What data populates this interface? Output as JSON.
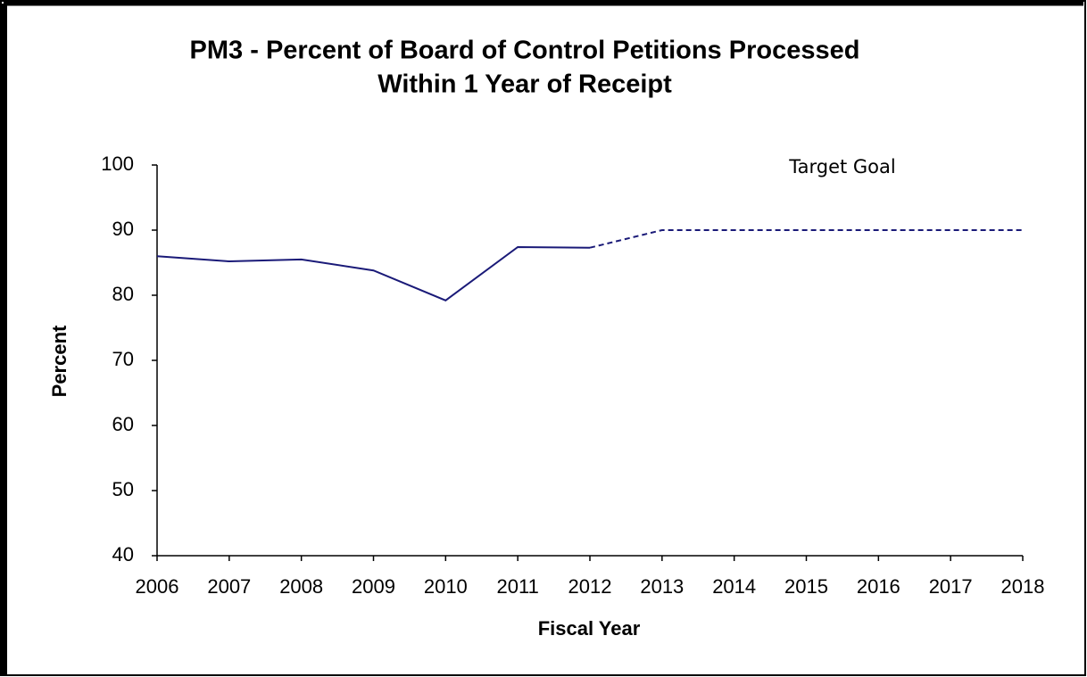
{
  "chart_data": {
    "type": "line",
    "title": [
      "PM3 - Percent of Board of Control Petitions Processed",
      "Within 1 Year of Receipt"
    ],
    "xlabel": "Fiscal Year",
    "ylabel": "Percent",
    "annotation": "Target Goal",
    "categories": [
      "2006",
      "2007",
      "2008",
      "2009",
      "2010",
      "2011",
      "2012",
      "2013",
      "2014",
      "2015",
      "2016",
      "2017",
      "2018"
    ],
    "series": [
      {
        "color": "#1a1a78",
        "dash": false,
        "values": [
          86.0,
          85.2,
          85.5,
          83.8,
          79.2,
          87.4,
          87.3,
          null,
          null,
          null,
          null,
          null,
          null
        ]
      },
      {
        "color": "#1a1a78",
        "dash": true,
        "values": [
          null,
          null,
          null,
          null,
          null,
          null,
          87.3,
          90,
          90,
          90,
          90,
          90,
          90
        ]
      }
    ],
    "ylim": [
      40,
      100
    ],
    "yticks": [
      40,
      50,
      60,
      70,
      80,
      90,
      100
    ],
    "grid": false
  }
}
